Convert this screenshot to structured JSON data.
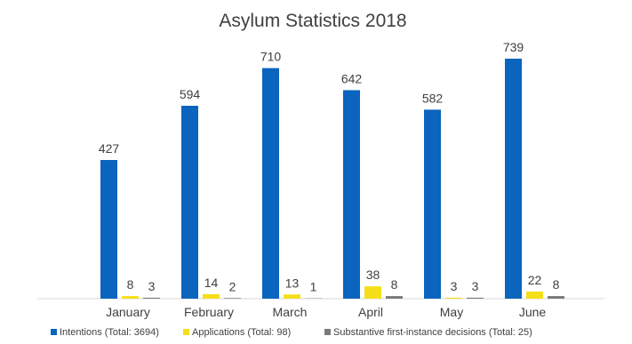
{
  "chart_data": {
    "type": "bar",
    "title": "Asylum Statistics 2018",
    "categories": [
      "January",
      "February",
      "March",
      "April",
      "May",
      "June"
    ],
    "series": [
      {
        "name": "Intentions (Total: 3694)",
        "color": "#0b64bd",
        "values": [
          427,
          594,
          710,
          642,
          582,
          739
        ]
      },
      {
        "name": "Applications (Total: 98)",
        "color": "#f5df1b",
        "values": [
          8,
          14,
          13,
          38,
          3,
          22
        ]
      },
      {
        "name": "Substantive first-instance decisions  (Total: 25)",
        "color": "#7a7a7a",
        "values": [
          3,
          2,
          1,
          8,
          3,
          8
        ]
      }
    ],
    "ylim": [
      0,
      800
    ],
    "grid": false,
    "legend": "bottom"
  }
}
